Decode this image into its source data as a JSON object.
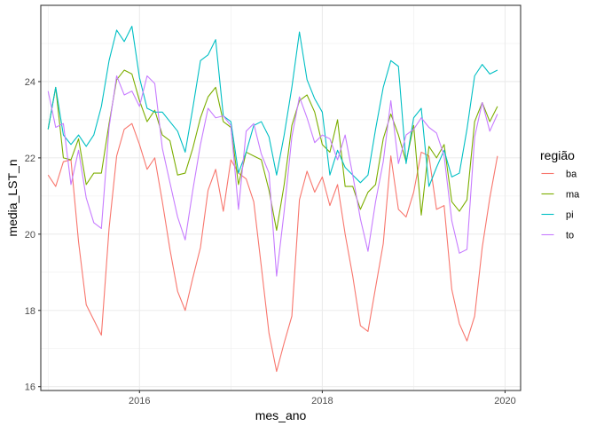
{
  "chart_data": {
    "type": "line",
    "title": "",
    "xlabel": "mes_ano",
    "ylabel": "media_LST_n",
    "xlim": [
      2014.92,
      2020.17
    ],
    "ylim": [
      15.9,
      26.0
    ],
    "x_ticks": [
      2016,
      2018,
      2020
    ],
    "x_tick_labels": [
      "2016",
      "2018",
      "2020"
    ],
    "y_ticks": [
      16,
      18,
      20,
      22,
      24
    ],
    "y_tick_labels": [
      "16",
      "18",
      "20",
      "22",
      "24"
    ],
    "grid": true,
    "legend_title": "região",
    "legend_position": "right",
    "x": [
      2015.0,
      2015.083,
      2015.167,
      2015.25,
      2015.333,
      2015.417,
      2015.5,
      2015.583,
      2015.667,
      2015.75,
      2015.833,
      2015.917,
      2016.0,
      2016.083,
      2016.167,
      2016.25,
      2016.333,
      2016.417,
      2016.5,
      2016.583,
      2016.667,
      2016.75,
      2016.833,
      2016.917,
      2017.0,
      2017.083,
      2017.167,
      2017.25,
      2017.333,
      2017.417,
      2017.5,
      2017.583,
      2017.667,
      2017.75,
      2017.833,
      2017.917,
      2018.0,
      2018.083,
      2018.167,
      2018.25,
      2018.333,
      2018.417,
      2018.5,
      2018.583,
      2018.667,
      2018.75,
      2018.833,
      2018.917,
      2019.0,
      2019.083,
      2019.167,
      2019.25,
      2019.333,
      2019.417,
      2019.5,
      2019.583,
      2019.667,
      2019.75,
      2019.833,
      2019.917
    ],
    "series": [
      {
        "name": "ba",
        "color": "#F8766D",
        "values": [
          21.55,
          21.25,
          21.9,
          21.95,
          19.8,
          18.15,
          17.75,
          17.35,
          20.15,
          22.05,
          22.75,
          22.9,
          22.35,
          21.7,
          22.0,
          20.85,
          19.6,
          18.5,
          18.0,
          18.85,
          19.65,
          21.15,
          21.7,
          20.6,
          21.95,
          21.6,
          21.45,
          20.85,
          19.15,
          17.4,
          16.4,
          17.15,
          17.85,
          20.9,
          21.65,
          21.1,
          21.5,
          20.75,
          21.3,
          20.0,
          18.9,
          17.6,
          17.45,
          18.6,
          19.75,
          22.05,
          20.65,
          20.45,
          21.1,
          22.15,
          22.05,
          20.65,
          20.75,
          18.55,
          17.65,
          17.2,
          17.85,
          19.65,
          20.95,
          22.05
        ]
      },
      {
        "name": "ma",
        "color": "#7CAE00",
        "values": [
          22.75,
          23.85,
          22.0,
          21.95,
          22.5,
          21.3,
          21.6,
          21.6,
          22.9,
          24.05,
          24.3,
          24.2,
          23.5,
          22.95,
          23.25,
          22.6,
          22.45,
          21.55,
          21.6,
          22.25,
          23.05,
          23.6,
          23.85,
          22.95,
          22.8,
          21.3,
          22.15,
          22.05,
          21.95,
          21.15,
          20.1,
          21.3,
          22.85,
          23.5,
          23.65,
          23.2,
          22.35,
          22.15,
          23.0,
          21.25,
          21.25,
          20.65,
          21.1,
          21.3,
          22.5,
          23.15,
          22.6,
          21.9,
          22.85,
          20.5,
          22.3,
          22.0,
          22.35,
          20.85,
          20.6,
          20.9,
          22.95,
          23.45,
          22.95,
          23.35
        ]
      },
      {
        "name": "pi",
        "color": "#00BFC4",
        "values": [
          22.75,
          23.85,
          22.6,
          22.35,
          22.6,
          22.3,
          22.6,
          23.35,
          24.55,
          25.35,
          25.05,
          25.45,
          24.1,
          23.3,
          23.2,
          23.2,
          22.95,
          22.7,
          22.15,
          23.3,
          24.55,
          24.7,
          25.1,
          23.1,
          22.95,
          21.6,
          22.15,
          22.85,
          22.95,
          22.55,
          21.55,
          22.6,
          23.85,
          25.3,
          24.05,
          23.55,
          23.2,
          21.55,
          22.2,
          21.75,
          21.55,
          21.35,
          21.55,
          22.75,
          23.85,
          24.55,
          24.4,
          21.85,
          23.05,
          23.3,
          21.25,
          21.75,
          22.2,
          21.5,
          21.6,
          22.75,
          24.15,
          24.45,
          24.2,
          24.3
        ]
      },
      {
        "name": "to",
        "color": "#C77CFF",
        "values": [
          23.75,
          22.8,
          22.9,
          21.3,
          22.2,
          20.95,
          20.3,
          20.15,
          22.8,
          24.15,
          23.65,
          23.75,
          23.35,
          24.15,
          23.95,
          22.25,
          21.35,
          20.45,
          19.85,
          21.15,
          22.35,
          23.3,
          23.05,
          23.1,
          22.85,
          20.65,
          22.7,
          22.9,
          22.1,
          21.6,
          18.9,
          20.6,
          22.55,
          23.6,
          23.05,
          22.4,
          22.6,
          22.5,
          21.95,
          22.6,
          21.55,
          20.4,
          19.55,
          20.85,
          21.9,
          23.5,
          21.85,
          22.6,
          22.75,
          23.05,
          22.8,
          22.65,
          22.05,
          20.35,
          19.5,
          19.6,
          22.55,
          23.45,
          22.7,
          23.15
        ]
      }
    ]
  }
}
